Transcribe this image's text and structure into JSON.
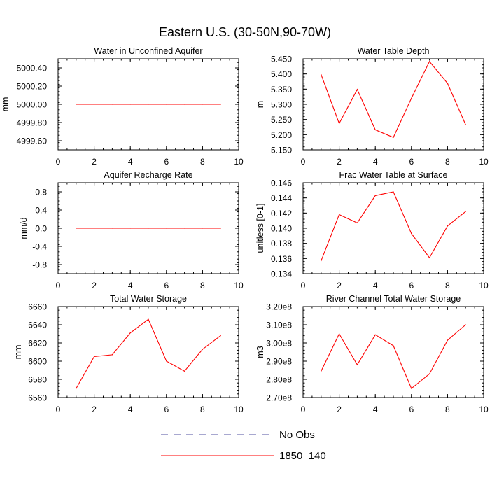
{
  "figure": {
    "title": "Eastern U.S. (30-50N,90-70W)",
    "colors": {
      "model": "#ff0000",
      "obs": "#5050a0",
      "axis": "#000000"
    }
  },
  "legend": {
    "entries": [
      {
        "label": "No Obs",
        "style": "dashed",
        "color": "#5050a0"
      },
      {
        "label": "1850_140",
        "style": "solid",
        "color": "#ff0000"
      }
    ]
  },
  "chart_data": [
    {
      "type": "line",
      "title": "Water in Unconfined Aquifer",
      "ylabel": "mm",
      "xlim": [
        0,
        10
      ],
      "ylim": [
        4999.5,
        5000.5
      ],
      "xticks": [
        0,
        2,
        4,
        6,
        8,
        10
      ],
      "xtick_labels": [
        "0",
        "2",
        "4",
        "6",
        "8",
        "10"
      ],
      "yticks": [
        4999.6,
        4999.8,
        5000.0,
        5000.2,
        5000.4
      ],
      "ytick_labels": [
        "4999.60",
        "4999.80",
        "5000.00",
        "5000.20",
        "5000.40"
      ],
      "series": [
        {
          "name": "1850_140",
          "x": [
            1,
            2,
            3,
            4,
            5,
            6,
            7,
            8,
            9
          ],
          "values": [
            5000,
            5000,
            5000,
            5000,
            5000,
            5000,
            5000,
            5000,
            5000
          ]
        }
      ]
    },
    {
      "type": "line",
      "title": "Water Table Depth",
      "ylabel": "m",
      "xlim": [
        0,
        10
      ],
      "ylim": [
        5.15,
        5.45
      ],
      "xticks": [
        0,
        2,
        4,
        6,
        8,
        10
      ],
      "xtick_labels": [
        "0",
        "2",
        "4",
        "6",
        "8",
        "10"
      ],
      "yticks": [
        5.15,
        5.2,
        5.25,
        5.3,
        5.35,
        5.4,
        5.45
      ],
      "ytick_labels": [
        "5.150",
        "5.200",
        "5.250",
        "5.300",
        "5.350",
        "5.400",
        "5.450"
      ],
      "series": [
        {
          "name": "1850_140",
          "x": [
            1,
            2,
            3,
            4,
            5,
            6,
            7,
            8,
            9
          ],
          "values": [
            5.398,
            5.237,
            5.349,
            5.216,
            5.191,
            5.32,
            5.441,
            5.369,
            5.233
          ]
        }
      ]
    },
    {
      "type": "line",
      "title": "Aquifer Recharge Rate",
      "ylabel": "mm/d",
      "xlim": [
        0,
        10
      ],
      "ylim": [
        -1.0,
        1.0
      ],
      "xticks": [
        0,
        2,
        4,
        6,
        8,
        10
      ],
      "xtick_labels": [
        "0",
        "2",
        "4",
        "6",
        "8",
        "10"
      ],
      "yticks": [
        -0.8,
        -0.4,
        0,
        0.4,
        0.8
      ],
      "ytick_labels": [
        "-0.8",
        "-0.4",
        "0.0",
        "0.4",
        "0.8"
      ],
      "series": [
        {
          "name": "1850_140",
          "x": [
            1,
            2,
            3,
            4,
            5,
            6,
            7,
            8,
            9
          ],
          "values": [
            0,
            0,
            0,
            0,
            0,
            0,
            0,
            0,
            0
          ]
        }
      ]
    },
    {
      "type": "line",
      "title": "Frac Water Table at Surface",
      "ylabel": "unitless [0-1]",
      "xlim": [
        0,
        10
      ],
      "ylim": [
        0.134,
        0.146
      ],
      "xticks": [
        0,
        2,
        4,
        6,
        8,
        10
      ],
      "xtick_labels": [
        "0",
        "2",
        "4",
        "6",
        "8",
        "10"
      ],
      "yticks": [
        0.134,
        0.136,
        0.138,
        0.14,
        0.142,
        0.144,
        0.146
      ],
      "ytick_labels": [
        "0.134",
        "0.136",
        "0.138",
        "0.140",
        "0.142",
        "0.144",
        "0.146"
      ],
      "series": [
        {
          "name": "1850_140",
          "x": [
            1,
            2,
            3,
            4,
            5,
            6,
            7,
            8,
            9
          ],
          "values": [
            0.1357,
            0.1418,
            0.1407,
            0.1443,
            0.1448,
            0.1393,
            0.1361,
            0.1403,
            0.1422
          ]
        }
      ]
    },
    {
      "type": "line",
      "title": "Total Water Storage",
      "ylabel": "mm",
      "xlim": [
        0,
        10
      ],
      "ylim": [
        6560,
        6660
      ],
      "xticks": [
        0,
        2,
        4,
        6,
        8,
        10
      ],
      "xtick_labels": [
        "0",
        "2",
        "4",
        "6",
        "8",
        "10"
      ],
      "yticks": [
        6560,
        6580,
        6600,
        6620,
        6640,
        6660
      ],
      "ytick_labels": [
        "6560",
        "6580",
        "6600",
        "6620",
        "6640",
        "6660"
      ],
      "series": [
        {
          "name": "1850_140",
          "x": [
            1,
            2,
            3,
            4,
            5,
            6,
            7,
            8,
            9
          ],
          "values": [
            6570,
            6605,
            6607,
            6631,
            6646,
            6600,
            6589,
            6613,
            6628
          ]
        }
      ]
    },
    {
      "type": "line",
      "title": "River Channel Total Water Storage",
      "ylabel": "m3",
      "xlim": [
        0,
        10
      ],
      "ylim": [
        270000000,
        320000000
      ],
      "xticks": [
        0,
        2,
        4,
        6,
        8,
        10
      ],
      "xtick_labels": [
        "0",
        "2",
        "4",
        "6",
        "8",
        "10"
      ],
      "yticks": [
        270000000,
        280000000,
        290000000,
        300000000,
        310000000,
        320000000
      ],
      "ytick_labels": [
        "2.70e8",
        "2.80e8",
        "2.90e8",
        "3.00e8",
        "3.10e8",
        "3.20e8"
      ],
      "series": [
        {
          "name": "1850_140",
          "x": [
            1,
            2,
            3,
            4,
            5,
            6,
            7,
            8,
            9
          ],
          "values": [
            284500000,
            305000000,
            288000000,
            304500000,
            298500000,
            275000000,
            283000000,
            301500000,
            310000000
          ]
        }
      ]
    }
  ]
}
